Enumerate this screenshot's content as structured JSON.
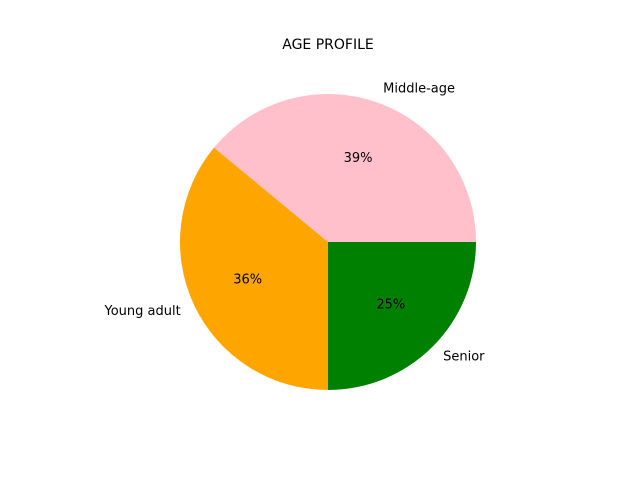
{
  "chart_data": {
    "type": "pie",
    "title": "AGE PROFILE",
    "start_angle_deg": 0,
    "direction": "counterclockwise",
    "slices": [
      {
        "label": "Middle-age",
        "value": 39,
        "display": "39%",
        "color": "#ffc0cb"
      },
      {
        "label": "Young adult",
        "value": 36,
        "display": "36%",
        "color": "#ffa500"
      },
      {
        "label": "Senior",
        "value": 25,
        "display": "25%",
        "color": "#008000"
      }
    ]
  }
}
